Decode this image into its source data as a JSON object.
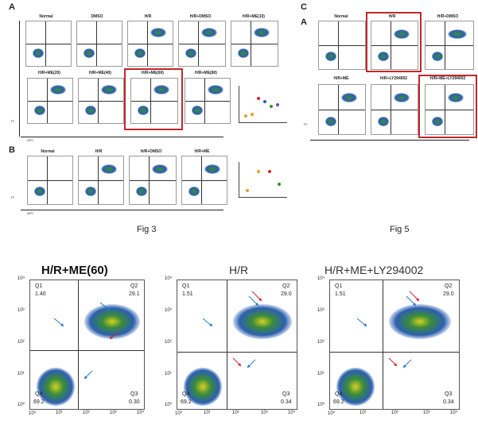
{
  "fig3": {
    "caption": "Fig 3",
    "panel_a_letter": "A",
    "panel_b_letter": "B",
    "row1_titles": [
      "Normal",
      "DMSO",
      "H/R",
      "H/R+DMSO",
      "H/R+ME(10)"
    ],
    "row2_titles": [
      "H/R+ME(20)",
      "H/R+ME(40)",
      "H/R+ME(60)",
      "H/R+ME(80)"
    ],
    "rowB_titles": [
      "Normal",
      "H/R",
      "H/R+DMSO",
      "H/R+ME"
    ],
    "axis_x": "APC",
    "axis_y": "PI"
  },
  "fig5": {
    "caption": "Fig 5",
    "panel_c_letter": "C",
    "panel_a_letter": "A",
    "row1_titles": [
      "Normal",
      "H/R",
      "H/R+DMSO"
    ],
    "row2_titles": [
      "H/R+ME",
      "H/R+LY294002",
      "H/R+ME+LY294002"
    ],
    "axis_y": "PI"
  },
  "zoom": {
    "plots": [
      {
        "title": "H/R+ME(60)",
        "q1_label": "Q1",
        "q1_value": "1.40",
        "q2_label": "Q2",
        "q2_value": "29.1",
        "q3_label": "Q3",
        "q3_value": "0.30",
        "q4_label": "Q4",
        "q4_value": "69.2"
      },
      {
        "title": "H/R",
        "q1_label": "Q1",
        "q1_value": "1.51",
        "q2_label": "Q2",
        "q2_value": "29.0",
        "q3_label": "Q3",
        "q3_value": "0.34",
        "q4_label": "Q4",
        "q4_value": "69.2"
      },
      {
        "title": "H/R+ME+LY294002",
        "q1_label": "Q1",
        "q1_value": "1.51",
        "q2_label": "Q2",
        "q2_value": "29.0",
        "q3_label": "Q3",
        "q3_value": "0.34",
        "q4_label": "Q4",
        "q4_value": "69.2"
      }
    ],
    "x_ticks": [
      "10⁰",
      "10¹",
      "10²",
      "10³",
      "10⁴"
    ],
    "y_ticks": [
      "10⁴",
      "10³",
      "10²",
      "10¹",
      "10⁰"
    ]
  },
  "colors": {
    "highlight_box": "#c0282d",
    "arrow_red": "#d2232a",
    "arrow_blue": "#2f78c4",
    "density_core": "#3a8c3a",
    "density_mid": "#2c5fb0"
  }
}
